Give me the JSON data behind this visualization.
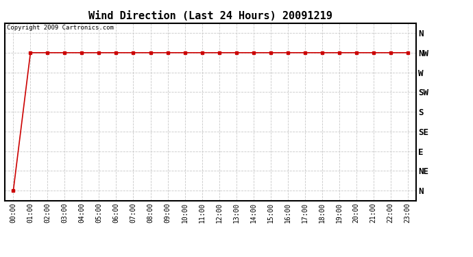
{
  "title": "Wind Direction (Last 24 Hours) 20091219",
  "copyright": "Copyright 2009 Cartronics.com",
  "background_color": "#ffffff",
  "line_color": "#cc0000",
  "grid_color": "#c8c8c8",
  "x_labels": [
    "00:00",
    "01:00",
    "02:00",
    "03:00",
    "04:00",
    "05:00",
    "06:00",
    "07:00",
    "08:00",
    "09:00",
    "10:00",
    "11:00",
    "12:00",
    "13:00",
    "14:00",
    "15:00",
    "16:00",
    "17:00",
    "18:00",
    "19:00",
    "20:00",
    "21:00",
    "22:00",
    "23:00"
  ],
  "y_labels": [
    "N",
    "NE",
    "E",
    "SE",
    "S",
    "SW",
    "W",
    "NW",
    "N"
  ],
  "y_values": [
    0,
    1,
    2,
    3,
    4,
    5,
    6,
    7,
    8
  ],
  "data_x": [
    0,
    1,
    2,
    3,
    4,
    5,
    6,
    7,
    8,
    9,
    10,
    11,
    12,
    13,
    14,
    15,
    16,
    17,
    18,
    19,
    20,
    21,
    22,
    23
  ],
  "data_y": [
    0,
    7,
    7,
    7,
    7,
    7,
    7,
    7,
    7,
    7,
    7,
    7,
    7,
    7,
    7,
    7,
    7,
    7,
    7,
    7,
    7,
    7,
    7,
    7
  ],
  "marker_style": "s",
  "marker_size": 3,
  "line_width": 1.2,
  "title_fontsize": 11,
  "tick_fontsize": 7,
  "ytick_fontsize": 9,
  "copyright_fontsize": 6.5
}
